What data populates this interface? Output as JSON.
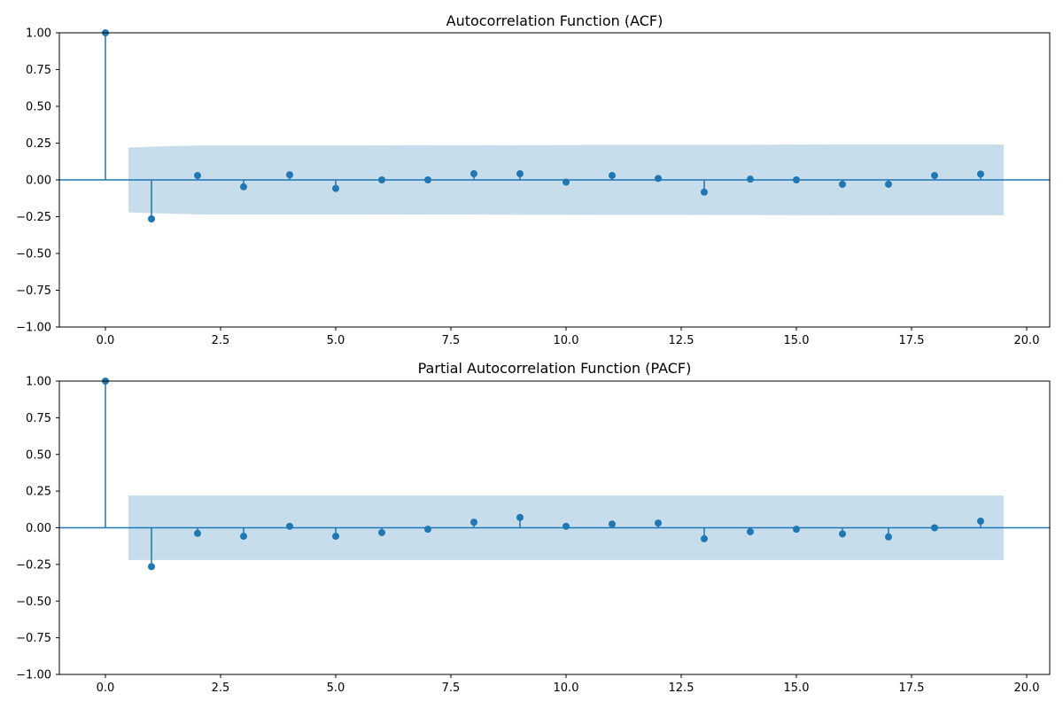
{
  "chart_data": [
    {
      "type": "stem",
      "title": "Autocorrelation Function (ACF)",
      "xlim": [
        -1,
        20.5
      ],
      "ylim": [
        -1.0,
        1.0
      ],
      "x_ticks": [
        0.0,
        2.5,
        5.0,
        7.5,
        10.0,
        12.5,
        15.0,
        17.5,
        20.0
      ],
      "x_tick_labels": [
        "0.0",
        "2.5",
        "5.0",
        "7.5",
        "10.0",
        "12.5",
        "15.0",
        "17.5",
        "20.0"
      ],
      "y_ticks": [
        1.0,
        0.75,
        0.5,
        0.25,
        0.0,
        -0.25,
        -0.5,
        -0.75,
        -1.0
      ],
      "y_tick_labels": [
        "1.00",
        "0.75",
        "0.50",
        "0.25",
        "0.00",
        "−0.25",
        "−0.50",
        "−0.75",
        "−1.00"
      ],
      "lags": [
        0,
        1,
        2,
        3,
        4,
        5,
        6,
        7,
        8,
        9,
        10,
        11,
        12,
        13,
        14,
        15,
        16,
        17,
        18,
        19
      ],
      "values": [
        1.0,
        -0.265,
        0.03,
        -0.047,
        0.035,
        -0.058,
        0.0,
        0.0,
        0.042,
        0.042,
        -0.015,
        0.03,
        0.01,
        -0.083,
        0.005,
        0.0,
        -0.03,
        -0.03,
        0.03,
        0.04
      ],
      "confidence_band": {
        "x": [
          0.5,
          1.0,
          2.0,
          3.0,
          5.0,
          8.0,
          12.0,
          16.0,
          19.5
        ],
        "upper": [
          0.22,
          0.226,
          0.234,
          0.235,
          0.235,
          0.236,
          0.238,
          0.24,
          0.24
        ]
      },
      "zero_line": true,
      "grid": false,
      "color": "#1f77b4",
      "band_color": "#1f77b4"
    },
    {
      "type": "stem",
      "title": "Partial Autocorrelation Function (PACF)",
      "xlim": [
        -1,
        20.5
      ],
      "ylim": [
        -1.0,
        1.0
      ],
      "x_ticks": [
        0.0,
        2.5,
        5.0,
        7.5,
        10.0,
        12.5,
        15.0,
        17.5,
        20.0
      ],
      "x_tick_labels": [
        "0.0",
        "2.5",
        "5.0",
        "7.5",
        "10.0",
        "12.5",
        "15.0",
        "17.5",
        "20.0"
      ],
      "y_ticks": [
        1.0,
        0.75,
        0.5,
        0.25,
        0.0,
        -0.25,
        -0.5,
        -0.75,
        -1.0
      ],
      "y_tick_labels": [
        "1.00",
        "0.75",
        "0.50",
        "0.25",
        "0.00",
        "−0.25",
        "−0.50",
        "−0.75",
        "−1.00"
      ],
      "lags": [
        0,
        1,
        2,
        3,
        4,
        5,
        6,
        7,
        8,
        9,
        10,
        11,
        12,
        13,
        14,
        15,
        16,
        17,
        18,
        19
      ],
      "values": [
        1.0,
        -0.265,
        -0.038,
        -0.058,
        0.01,
        -0.058,
        -0.033,
        -0.01,
        0.038,
        0.07,
        0.01,
        0.025,
        0.032,
        -0.075,
        -0.027,
        -0.01,
        -0.042,
        -0.062,
        0.0,
        0.045
      ],
      "confidence_band": {
        "x": [
          0.5,
          19.5
        ],
        "upper": [
          0.22,
          0.22
        ]
      },
      "zero_line": true,
      "grid": false,
      "color": "#1f77b4",
      "band_color": "#1f77b4"
    }
  ]
}
